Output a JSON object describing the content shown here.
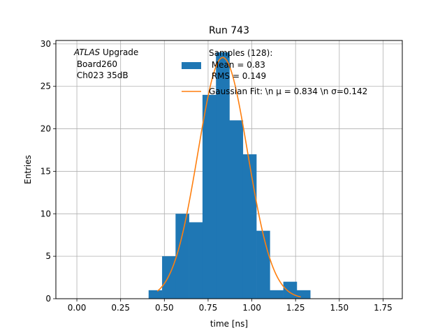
{
  "chart_data": {
    "type": "bar",
    "title": "Run 743",
    "xlabel": "time [ns]",
    "ylabel": "Entries",
    "xlim": [
      -0.12,
      1.86
    ],
    "ylim": [
      0,
      30.4
    ],
    "xticks": [
      0.0,
      0.25,
      0.5,
      0.75,
      1.0,
      1.25,
      1.5,
      1.75
    ],
    "xtick_labels": [
      "0.00",
      "0.25",
      "0.50",
      "0.75",
      "1.00",
      "1.25",
      "1.50",
      "1.75"
    ],
    "yticks": [
      0,
      5,
      10,
      15,
      20,
      25,
      30
    ],
    "ytick_labels": [
      "0",
      "5",
      "10",
      "15",
      "20",
      "25",
      "30"
    ],
    "grid": true,
    "bin_edges": [
      0.41,
      0.487,
      0.564,
      0.641,
      0.718,
      0.795,
      0.872,
      0.949,
      1.026,
      1.103,
      1.18,
      1.257,
      1.334
    ],
    "counts": [
      1,
      5,
      10,
      9,
      24,
      29,
      21,
      17,
      8,
      1,
      2,
      1
    ],
    "fit": {
      "mu": 0.834,
      "sigma": 0.142,
      "amplitude": 28.4,
      "x_range": [
        0.46,
        1.28
      ]
    },
    "colors": {
      "hist": "#1f77b4",
      "fit": "#ff7f0e",
      "grid": "#b0b0b0"
    },
    "annotation": {
      "line1_italic": "ATLAS",
      "line1_rest": " Upgrade",
      "line2": " Board260",
      "line3": " Ch023 35dB"
    },
    "legend": {
      "placement": "top-right",
      "hist_label_lines": [
        "Samples (128):",
        " Mean = 0.83",
        " RMS = 0.149"
      ],
      "fit_label": "Gaussian Fit: \\n μ = 0.834 \\n σ=0.142"
    }
  }
}
